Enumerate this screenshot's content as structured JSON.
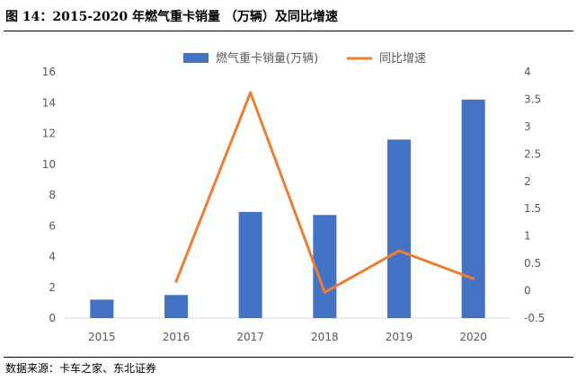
{
  "figure_title": "图 14：2015-2020 年燃气重卡销量 （万辆）及同比增速",
  "source": "数据来源：卡车之家、东北证券",
  "colors": {
    "bar": "#4472c4",
    "line": "#ed7d31",
    "axis": "#d9d9d9",
    "text": "#595959"
  },
  "chart_data": {
    "type": "bar",
    "categories": [
      "2015",
      "2016",
      "2017",
      "2018",
      "2019",
      "2020"
    ],
    "series": [
      {
        "name": "燃气重卡销量(万辆)",
        "type": "bar",
        "axis": "left",
        "values": [
          1.2,
          1.5,
          6.9,
          6.7,
          11.6,
          14.2
        ]
      },
      {
        "name": "同比增速",
        "type": "line",
        "axis": "right",
        "values": [
          null,
          0.17,
          3.62,
          -0.03,
          0.73,
          0.22
        ]
      }
    ],
    "y_left": {
      "ylim": [
        0,
        16
      ],
      "ticks": [
        "0",
        "2",
        "4",
        "6",
        "8",
        "10",
        "12",
        "14",
        "16"
      ]
    },
    "y_right": {
      "ylim": [
        -0.5,
        4
      ],
      "ticks": [
        "-0.5",
        "0",
        "0.5",
        "1",
        "1.5",
        "2",
        "2.5",
        "3",
        "3.5",
        "4"
      ]
    },
    "legend_position": "top-center",
    "grid": false
  }
}
